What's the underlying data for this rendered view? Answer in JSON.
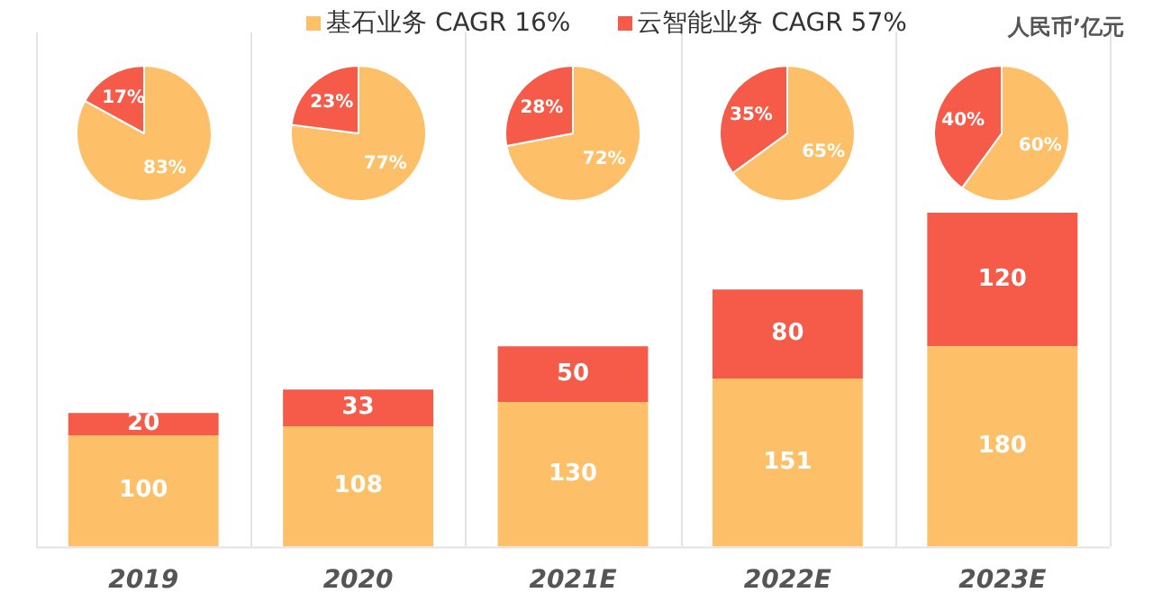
{
  "chart_data": [
    {
      "type": "bar",
      "stacked": true,
      "categories": [
        "2019",
        "2020",
        "2021E",
        "2022E",
        "2023E"
      ],
      "series": [
        {
          "name": "基石业务 CAGR 16%",
          "color": "#fdc068",
          "values": [
            100,
            108,
            130,
            151,
            180
          ]
        },
        {
          "name": "云智能业务 CAGR 57%",
          "color": "#f65a48",
          "values": [
            20,
            33,
            50,
            80,
            120
          ]
        }
      ],
      "data_labels": true,
      "legend": "top",
      "grid": "x",
      "tick_labels": "x",
      "annotations": [
        "人民币’亿元"
      ]
    },
    {
      "type": "pie",
      "categories": [
        null,
        null
      ],
      "values": [
        83,
        17
      ],
      "colors": [
        "#fdc068",
        "#f65a48"
      ],
      "value_labels": [
        "83%",
        "17%"
      ]
    },
    {
      "type": "pie",
      "categories": [
        null,
        null
      ],
      "values": [
        77,
        23
      ],
      "colors": [
        "#fdc068",
        "#f65a48"
      ],
      "value_labels": [
        "77%",
        "23%"
      ]
    },
    {
      "type": "pie",
      "categories": [
        null,
        null
      ],
      "values": [
        72,
        28
      ],
      "colors": [
        "#fdc068",
        "#f65a48"
      ],
      "value_labels": [
        "72%",
        "28%"
      ]
    },
    {
      "type": "pie",
      "categories": [
        null,
        null
      ],
      "values": [
        65,
        35
      ],
      "colors": [
        "#fdc068",
        "#f65a48"
      ],
      "value_labels": [
        "65%",
        "35%"
      ]
    },
    {
      "type": "pie",
      "categories": [
        null,
        null
      ],
      "values": [
        60,
        40
      ],
      "colors": [
        "#fdc068",
        "#f65a48"
      ],
      "value_labels": [
        "60%",
        "40%"
      ]
    }
  ]
}
